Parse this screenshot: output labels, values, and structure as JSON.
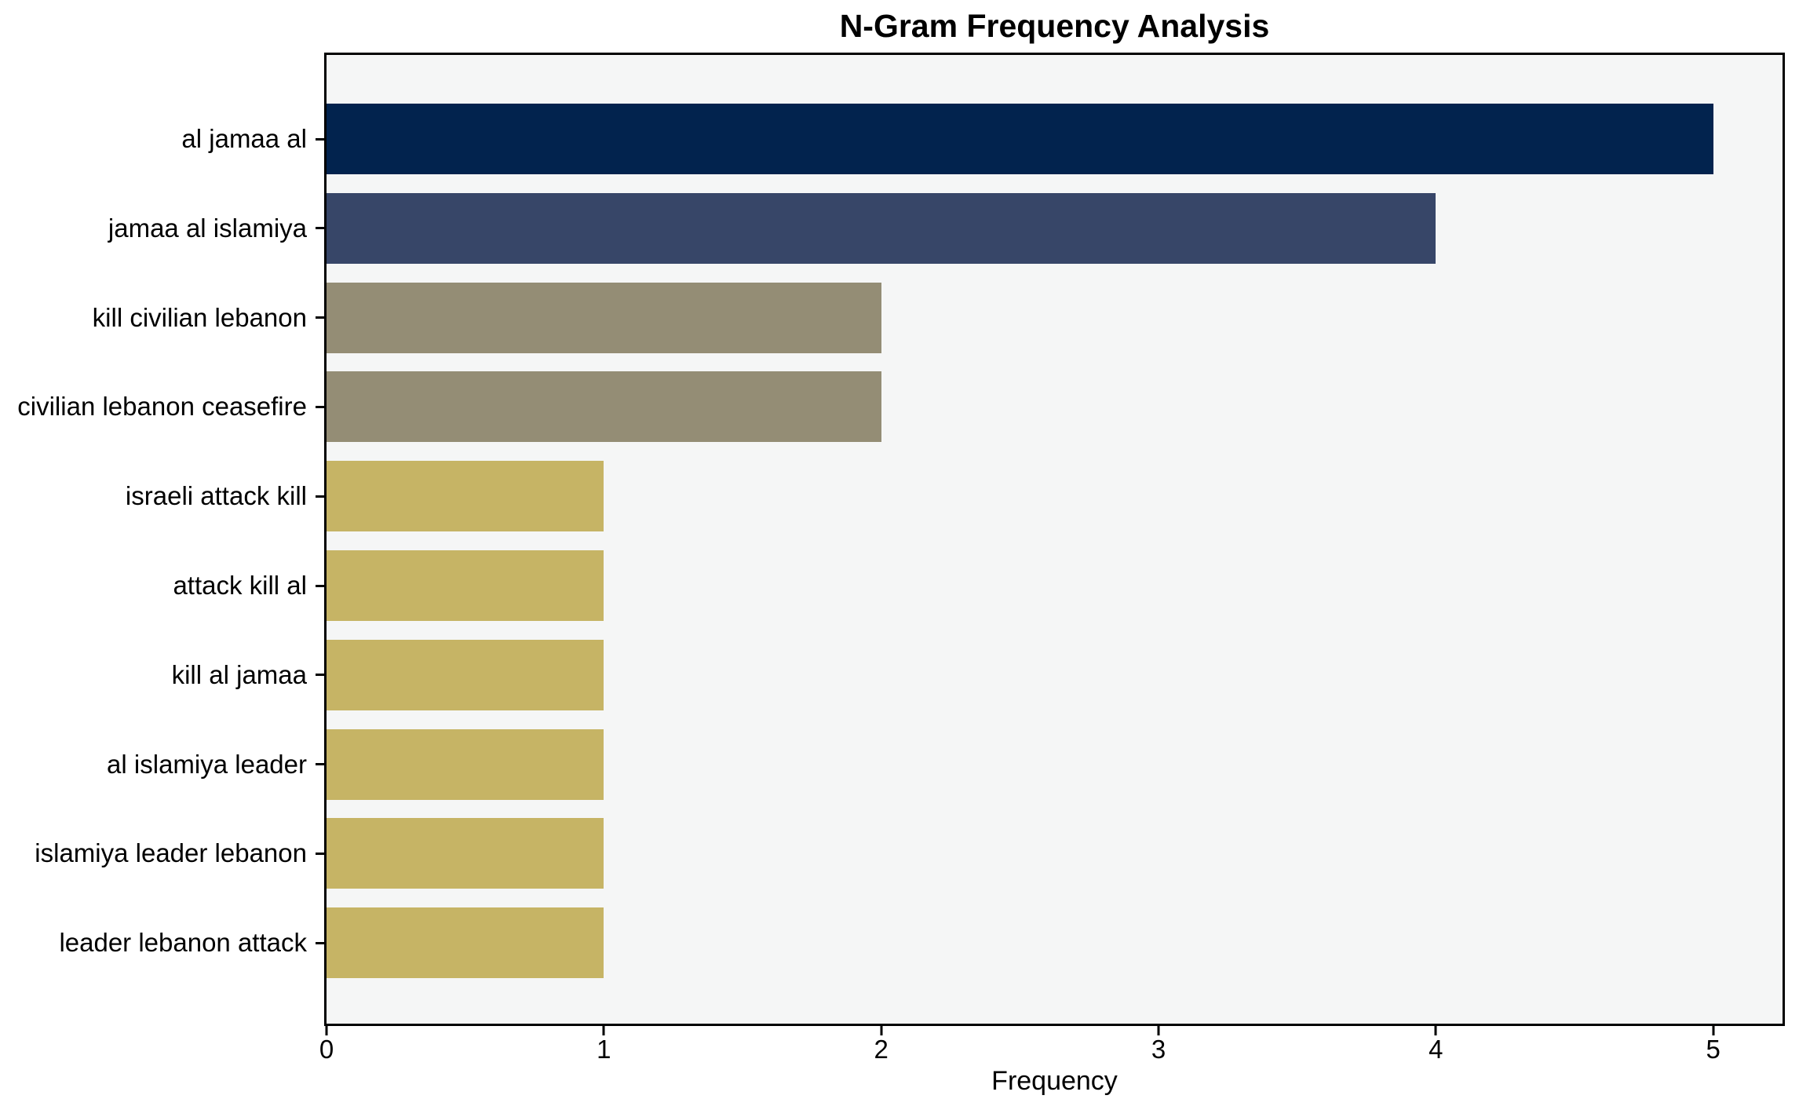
{
  "chart_data": {
    "type": "bar",
    "orientation": "horizontal",
    "title": "N-Gram Frequency Analysis",
    "categories": [
      "al jamaa al",
      "jamaa al islamiya",
      "kill civilian lebanon",
      "civilian lebanon ceasefire",
      "israeli attack kill",
      "attack kill al",
      "kill al jamaa",
      "al islamiya leader",
      "islamiya leader lebanon",
      "leader lebanon attack"
    ],
    "values": [
      5,
      4,
      2,
      2,
      1,
      1,
      1,
      1,
      1,
      1
    ],
    "bar_colors": [
      "#02234E",
      "#374668",
      "#948D75",
      "#948D75",
      "#C6B465",
      "#C6B465",
      "#C6B465",
      "#C6B465",
      "#C6B465",
      "#C6B465"
    ],
    "xlabel": "Frequency",
    "ylabel": "",
    "xticks": [
      "0",
      "1",
      "2",
      "3",
      "4",
      "5"
    ],
    "xtick_values": [
      0,
      1,
      2,
      3,
      4,
      5
    ],
    "xlim": [
      0,
      5.25
    ],
    "grid": false,
    "legend": null,
    "plot_bg": "#F5F6F6",
    "figure_bg": "#FFFFFF",
    "spine_color": "#000000",
    "text_color": "#000000"
  }
}
